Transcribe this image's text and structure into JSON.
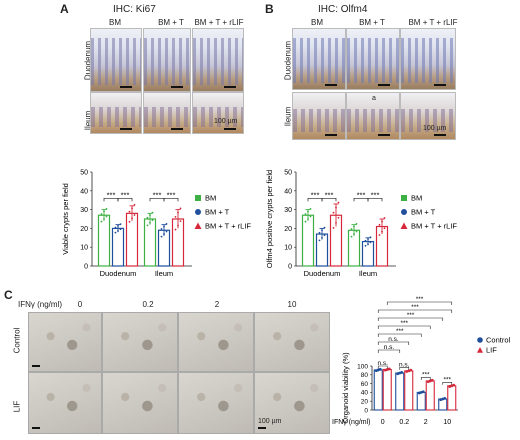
{
  "panelA": {
    "letter": "A",
    "title": "IHC: Ki67",
    "columns": [
      "BM",
      "BM + T",
      "BM + T + rLIF"
    ],
    "rows": [
      "Duodenum",
      "Ileum"
    ],
    "scale_label": "100 µm"
  },
  "panelB": {
    "letter": "B",
    "title": "IHC: Olfm4",
    "columns": [
      "BM",
      "BM + T",
      "BM + T + rLIF"
    ],
    "rows": [
      "Duodenum",
      "Ileum"
    ],
    "scale_label": "100 µm",
    "inset_letter": "a"
  },
  "panelC": {
    "letter": "C",
    "ifn_label": "IFNγ (ng/ml)",
    "doses": [
      "0",
      "0.2",
      "2",
      "10"
    ],
    "rows": [
      "Control",
      "LIF"
    ],
    "scale_label": "100 µm"
  },
  "colors": {
    "green": "#3cb043",
    "blue": "#1f4e9c",
    "red": "#d6283a"
  },
  "chart_data": [
    {
      "type": "bar",
      "ylabel": "Viable crypts per field",
      "ylim": [
        0,
        50
      ],
      "yticks": [
        "0",
        "10",
        "20",
        "30",
        "40",
        "50"
      ],
      "categories": [
        "Duodenum",
        "Ileum"
      ],
      "series": [
        {
          "name": "BM",
          "values": [
            27,
            25
          ],
          "errors": [
            3,
            3
          ]
        },
        {
          "name": "BM + T",
          "values": [
            20,
            19
          ],
          "errors": [
            2,
            3
          ]
        },
        {
          "name": "BM + T + rLIF",
          "values": [
            28,
            25
          ],
          "errors": [
            4,
            5
          ]
        }
      ],
      "significance": [
        "***",
        "***",
        "***",
        "***"
      ],
      "legend": "right"
    },
    {
      "type": "bar",
      "ylabel": "Olfm4 positive crypts per field",
      "ylim": [
        0,
        50
      ],
      "yticks": [
        "0",
        "10",
        "20",
        "30",
        "40",
        "50"
      ],
      "categories": [
        "Duodenum",
        "Ileum"
      ],
      "series": [
        {
          "name": "BM",
          "values": [
            27,
            19
          ],
          "errors": [
            3,
            3
          ]
        },
        {
          "name": "BM + T",
          "values": [
            17,
            13
          ],
          "errors": [
            3,
            2
          ]
        },
        {
          "name": "BM + T + rLIF",
          "values": [
            27,
            21
          ],
          "errors": [
            6,
            4
          ]
        }
      ],
      "significance": [
        "***",
        "***",
        "***",
        "***"
      ],
      "legend": "right"
    },
    {
      "type": "bar",
      "ylabel": "Organoid viability (%)",
      "ylim": [
        0,
        100
      ],
      "yticks": [
        "0",
        "20",
        "40",
        "60",
        "80",
        "100"
      ],
      "xlabel": "IFNγ (ng/ml)",
      "categories": [
        "0",
        "0.2",
        "2",
        "10"
      ],
      "series": [
        {
          "name": "Control",
          "values": [
            91,
            84,
            40,
            25
          ]
        },
        {
          "name": "LIF",
          "values": [
            92,
            89,
            66,
            55
          ]
        }
      ],
      "pair_significance": [
        "n.s.",
        "n.s.",
        "***",
        "***"
      ],
      "trend_significance": [
        "n.s.",
        "n.s.",
        "***",
        "***",
        "***",
        "***",
        "***"
      ],
      "legend": "right"
    }
  ]
}
